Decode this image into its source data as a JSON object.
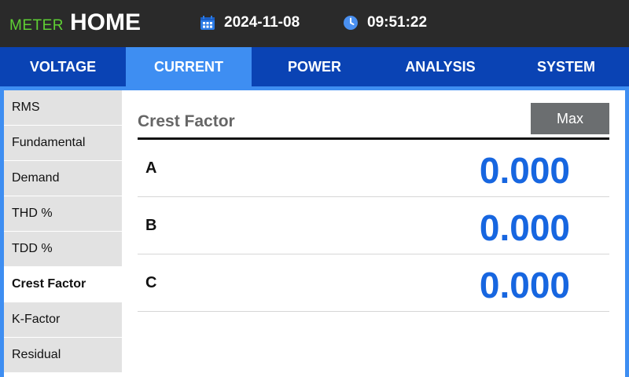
{
  "header": {
    "brand_prefix": "METER",
    "title": "HOME",
    "date": "2024-11-08",
    "time": "09:51:22"
  },
  "tabs": [
    {
      "label": "VOLTAGE",
      "active": false
    },
    {
      "label": "CURRENT",
      "active": true
    },
    {
      "label": "POWER",
      "active": false
    },
    {
      "label": "ANALYSIS",
      "active": false
    },
    {
      "label": "SYSTEM",
      "active": false
    }
  ],
  "sidebar": {
    "items": [
      {
        "label": "RMS",
        "active": false
      },
      {
        "label": "Fundamental",
        "active": false
      },
      {
        "label": "Demand",
        "active": false
      },
      {
        "label": "THD %",
        "active": false
      },
      {
        "label": "TDD %",
        "active": false
      },
      {
        "label": "Crest Factor",
        "active": true
      },
      {
        "label": "K-Factor",
        "active": false
      },
      {
        "label": "Residual",
        "active": false
      }
    ]
  },
  "panel": {
    "title": "Crest Factor",
    "max_button": "Max",
    "rows": [
      {
        "label": "A",
        "value": "0.000"
      },
      {
        "label": "B",
        "value": "0.000"
      },
      {
        "label": "C",
        "value": "0.000"
      }
    ]
  },
  "colors": {
    "brand_green": "#5fd034",
    "tabbar_blue": "#0a43b4",
    "active_blue": "#3e8ef2",
    "value_blue": "#1766e0",
    "header_dark": "#2a2a2a"
  },
  "icons": {
    "date": "calendar-icon",
    "time": "clock-icon"
  }
}
